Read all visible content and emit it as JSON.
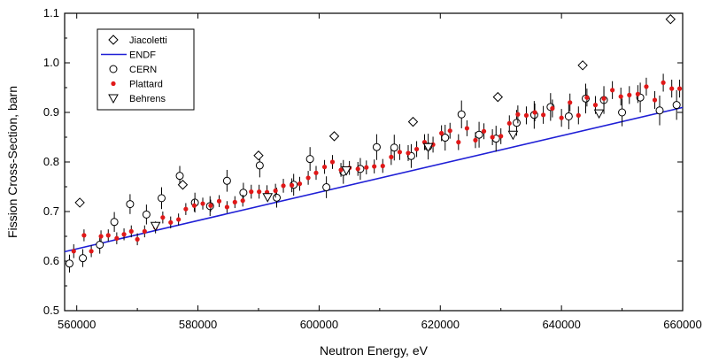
{
  "chart_data": {
    "type": "scatter",
    "title": "",
    "xlabel": "Neutron Energy, eV",
    "ylabel": "Fission Cross-Section, barn",
    "xlim": [
      558000,
      660000
    ],
    "ylim": [
      0.5,
      1.1
    ],
    "xticks": [
      560000,
      580000,
      600000,
      620000,
      640000,
      660000
    ],
    "yticks": [
      0.5,
      0.6,
      0.7,
      0.8,
      0.9,
      1.0,
      1.1
    ],
    "xtick_labels": [
      "560000",
      "580000",
      "600000",
      "620000",
      "640000",
      "660000"
    ],
    "ytick_labels": [
      "0.5",
      "0.6",
      "0.7",
      "0.8",
      "0.9",
      "1.0",
      "1.1"
    ],
    "grid": false,
    "legend_position": "top-left",
    "series": [
      {
        "name": "Jiacoletti",
        "marker": "diamond",
        "color": "#000000",
        "points": [
          [
            560500,
            0.718
          ],
          [
            577500,
            0.754
          ],
          [
            590000,
            0.813
          ],
          [
            602500,
            0.852
          ],
          [
            615500,
            0.881
          ],
          [
            629500,
            0.931
          ],
          [
            643500,
            0.995
          ],
          [
            658000,
            1.088
          ]
        ]
      },
      {
        "name": "ENDF",
        "marker": "line",
        "color": "#1f1fd6",
        "points": [
          [
            558000,
            0.619
          ],
          [
            660000,
            0.91
          ]
        ]
      },
      {
        "name": "CERN",
        "marker": "circle",
        "color": "#000000",
        "points": [
          [
            558800,
            0.595
          ],
          [
            561000,
            0.606
          ],
          [
            563800,
            0.633
          ],
          [
            566200,
            0.679
          ],
          [
            568800,
            0.715
          ],
          [
            571500,
            0.694
          ],
          [
            574000,
            0.727
          ],
          [
            577000,
            0.772
          ],
          [
            579500,
            0.718
          ],
          [
            582000,
            0.711
          ],
          [
            584800,
            0.762
          ],
          [
            587500,
            0.738
          ],
          [
            590200,
            0.793
          ],
          [
            593000,
            0.728
          ],
          [
            595800,
            0.754
          ],
          [
            598500,
            0.806
          ],
          [
            601200,
            0.749
          ],
          [
            604000,
            0.78
          ],
          [
            606800,
            0.786
          ],
          [
            609500,
            0.83
          ],
          [
            612400,
            0.829
          ],
          [
            615200,
            0.812
          ],
          [
            618000,
            0.831
          ],
          [
            620800,
            0.849
          ],
          [
            623500,
            0.896
          ],
          [
            626400,
            0.855
          ],
          [
            629200,
            0.847
          ],
          [
            632600,
            0.879
          ],
          [
            635500,
            0.895
          ],
          [
            638200,
            0.911
          ],
          [
            641200,
            0.892
          ],
          [
            644000,
            0.928
          ],
          [
            647000,
            0.925
          ],
          [
            650000,
            0.9
          ],
          [
            653000,
            0.93
          ],
          [
            656200,
            0.904
          ],
          [
            659000,
            0.915
          ]
        ],
        "errors": [
          0.018,
          0.018,
          0.018,
          0.02,
          0.02,
          0.02,
          0.022,
          0.02,
          0.02,
          0.02,
          0.022,
          0.02,
          0.024,
          0.02,
          0.022,
          0.024,
          0.022,
          0.024,
          0.022,
          0.026,
          0.026,
          0.024,
          0.026,
          0.026,
          0.028,
          0.026,
          0.026,
          0.026,
          0.028,
          0.028,
          0.026,
          0.03,
          0.028,
          0.028,
          0.03,
          0.03,
          0.03
        ]
      },
      {
        "name": "Plattard",
        "marker": "filled-dot",
        "color": "#e01818",
        "points": [
          [
            559500,
            0.62
          ],
          [
            561200,
            0.652
          ],
          [
            562400,
            0.62
          ],
          [
            564000,
            0.65
          ],
          [
            565200,
            0.652
          ],
          [
            566600,
            0.646
          ],
          [
            567800,
            0.654
          ],
          [
            569000,
            0.66
          ],
          [
            570000,
            0.644
          ],
          [
            571200,
            0.66
          ],
          [
            573000,
            0.668
          ],
          [
            574200,
            0.688
          ],
          [
            575500,
            0.678
          ],
          [
            576800,
            0.684
          ],
          [
            578000,
            0.705
          ],
          [
            579400,
            0.712
          ],
          [
            580800,
            0.716
          ],
          [
            582100,
            0.712
          ],
          [
            583500,
            0.721
          ],
          [
            584800,
            0.709
          ],
          [
            586100,
            0.719
          ],
          [
            587400,
            0.722
          ],
          [
            588800,
            0.74
          ],
          [
            590100,
            0.74
          ],
          [
            591400,
            0.739
          ],
          [
            592800,
            0.742
          ],
          [
            594100,
            0.752
          ],
          [
            595500,
            0.753
          ],
          [
            596800,
            0.756
          ],
          [
            598200,
            0.768
          ],
          [
            599500,
            0.778
          ],
          [
            600900,
            0.79
          ],
          [
            602200,
            0.8
          ],
          [
            603600,
            0.784
          ],
          [
            605000,
            0.788
          ],
          [
            606400,
            0.786
          ],
          [
            607800,
            0.789
          ],
          [
            609100,
            0.791
          ],
          [
            610500,
            0.792
          ],
          [
            611900,
            0.81
          ],
          [
            613300,
            0.82
          ],
          [
            614700,
            0.818
          ],
          [
            616100,
            0.826
          ],
          [
            617400,
            0.84
          ],
          [
            618800,
            0.835
          ],
          [
            620200,
            0.858
          ],
          [
            621600,
            0.863
          ],
          [
            623000,
            0.84
          ],
          [
            624400,
            0.868
          ],
          [
            625800,
            0.844
          ],
          [
            627200,
            0.862
          ],
          [
            628600,
            0.85
          ],
          [
            630000,
            0.852
          ],
          [
            631400,
            0.878
          ],
          [
            632800,
            0.896
          ],
          [
            634200,
            0.894
          ],
          [
            635600,
            0.9
          ],
          [
            637000,
            0.895
          ],
          [
            638500,
            0.908
          ],
          [
            640000,
            0.889
          ],
          [
            641400,
            0.92
          ],
          [
            642800,
            0.894
          ],
          [
            644200,
            0.93
          ],
          [
            645600,
            0.915
          ],
          [
            647000,
            0.928
          ],
          [
            648400,
            0.945
          ],
          [
            649800,
            0.932
          ],
          [
            651200,
            0.935
          ],
          [
            652600,
            0.937
          ],
          [
            654000,
            0.952
          ],
          [
            655400,
            0.925
          ],
          [
            656800,
            0.96
          ],
          [
            658200,
            0.948
          ],
          [
            659500,
            0.948
          ]
        ],
        "errors": [
          0.014,
          0.012,
          0.012,
          0.012,
          0.012,
          0.012,
          0.012,
          0.012,
          0.012,
          0.012,
          0.012,
          0.012,
          0.012,
          0.012,
          0.012,
          0.012,
          0.012,
          0.012,
          0.012,
          0.012,
          0.012,
          0.012,
          0.014,
          0.014,
          0.014,
          0.014,
          0.014,
          0.014,
          0.014,
          0.014,
          0.014,
          0.014,
          0.014,
          0.014,
          0.014,
          0.014,
          0.014,
          0.014,
          0.014,
          0.016,
          0.016,
          0.016,
          0.016,
          0.016,
          0.016,
          0.016,
          0.016,
          0.016,
          0.016,
          0.016,
          0.016,
          0.016,
          0.016,
          0.016,
          0.018,
          0.018,
          0.018,
          0.018,
          0.018,
          0.018,
          0.018,
          0.018,
          0.018,
          0.018,
          0.018,
          0.018,
          0.018,
          0.018,
          0.018,
          0.018,
          0.018,
          0.018,
          0.018,
          0.018
        ]
      },
      {
        "name": "Behrens",
        "marker": "triangle-down",
        "color": "#000000",
        "points": [
          [
            573000,
            0.671
          ],
          [
            591500,
            0.729
          ],
          [
            604500,
            0.783
          ],
          [
            618000,
            0.83
          ],
          [
            632000,
            0.855
          ],
          [
            646200,
            0.898
          ]
        ]
      }
    ]
  }
}
